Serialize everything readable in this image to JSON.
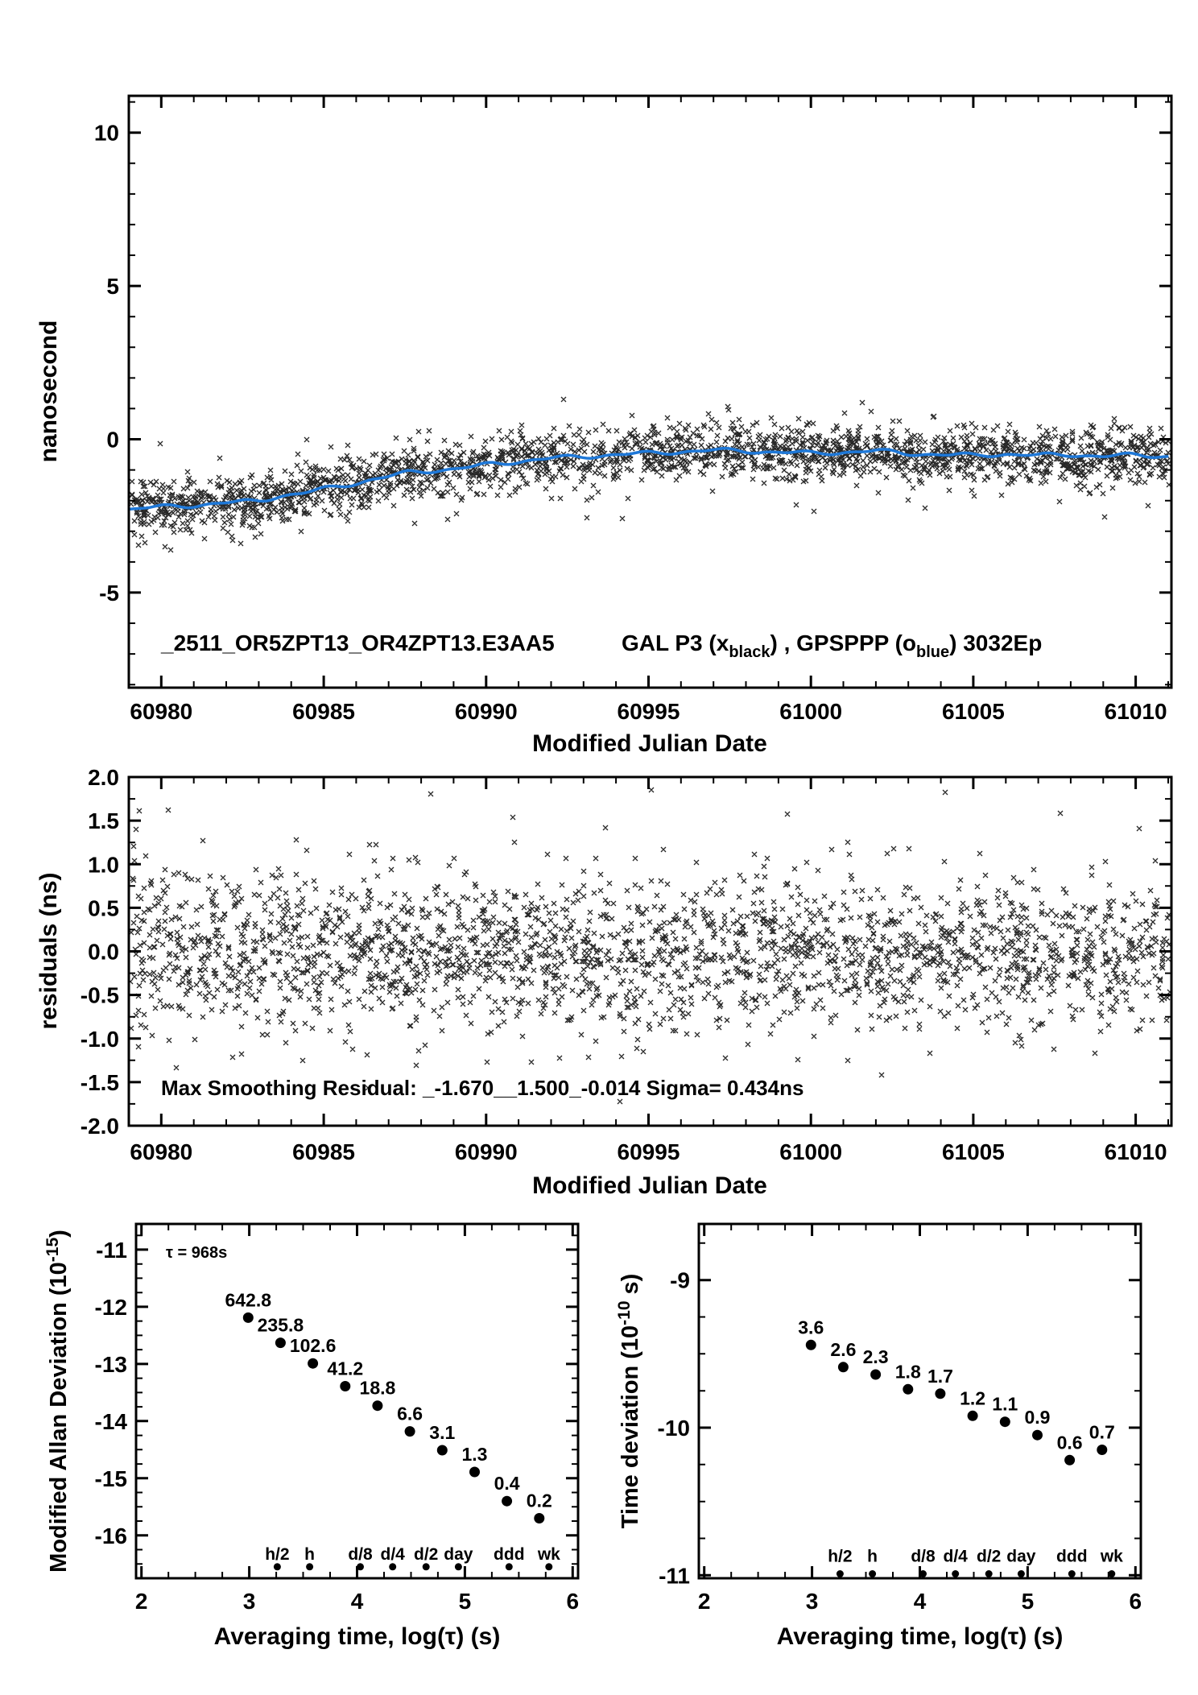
{
  "page": {
    "background": "#ffffff"
  },
  "colors": {
    "ink": "#000000",
    "smooth_blue": "#1e78d8",
    "label_red": "#e8110e"
  },
  "chart_data": [
    {
      "id": "phase",
      "type": "scatter",
      "xlabel": "Modified Julian Date",
      "ylabel": "nanosecond",
      "xlim": [
        60979.0,
        61011.1
      ],
      "ylim": [
        -8.1,
        11.2
      ],
      "xticks": [
        60980,
        60985,
        60990,
        60995,
        61000,
        61005,
        61010
      ],
      "yticks": [
        10,
        5,
        0,
        -5
      ],
      "x_minor_step": 1,
      "y_minor_step": 1,
      "legend_file": "_2511_OR5ZPT13_OR4ZPT13.E3AA5",
      "legend_segments": [
        {
          "t": "GAL P3 (x"
        },
        {
          "t": "black",
          "sub": true
        },
        {
          "t": ") ,  GPSPPP (o"
        },
        {
          "t": "blue",
          "sub": true
        },
        {
          "t": ")  3032Ep"
        }
      ],
      "series": [
        {
          "name": "GAL P3",
          "marker": "x",
          "color": "#000000",
          "n_points": 2400,
          "noise_sigma_ns": 0.45
        },
        {
          "name": "GPSPPP smoothed",
          "marker": "o",
          "color": "#1e78d8"
        }
      ],
      "smooth_trend_ns": [
        [
          60979.0,
          -2.3
        ],
        [
          60980,
          -2.2
        ],
        [
          60981,
          -2.15
        ],
        [
          60982,
          -2.08
        ],
        [
          60983,
          -2.0
        ],
        [
          60983.6,
          -1.85
        ],
        [
          60984.3,
          -1.78
        ],
        [
          60985,
          -1.62
        ],
        [
          60985.6,
          -1.5
        ],
        [
          60986.2,
          -1.38
        ],
        [
          60987,
          -1.22
        ],
        [
          60987.6,
          -1.08
        ],
        [
          60988.3,
          -1.02
        ],
        [
          60989,
          -0.97
        ],
        [
          60989.6,
          -0.9
        ],
        [
          60990.2,
          -0.8
        ],
        [
          60991,
          -0.72
        ],
        [
          60992,
          -0.62
        ],
        [
          60993,
          -0.56
        ],
        [
          60994,
          -0.5
        ],
        [
          60995,
          -0.46
        ],
        [
          60996,
          -0.4
        ],
        [
          60997,
          -0.36
        ],
        [
          60998,
          -0.38
        ],
        [
          60999,
          -0.42
        ],
        [
          61000,
          -0.46
        ],
        [
          61001,
          -0.42
        ],
        [
          61002,
          -0.38
        ],
        [
          61003,
          -0.46
        ],
        [
          61004,
          -0.5
        ],
        [
          61005,
          -0.53
        ],
        [
          61006,
          -0.48
        ],
        [
          61007,
          -0.53
        ],
        [
          61008,
          -0.5
        ],
        [
          61009,
          -0.55
        ],
        [
          61010,
          -0.52
        ],
        [
          61011.1,
          -0.55
        ]
      ]
    },
    {
      "id": "residuals",
      "type": "scatter",
      "xlabel": "Modified Julian Date",
      "ylabel": "residuals (ns)",
      "xlim": [
        60979.0,
        61011.1
      ],
      "ylim": [
        -2.0,
        2.0
      ],
      "xticks": [
        60980,
        60985,
        60990,
        60995,
        61000,
        61005,
        61010
      ],
      "yticks": [
        2.0,
        1.5,
        1.0,
        0.5,
        0.0,
        -0.5,
        -1.0,
        -1.5,
        -2.0
      ],
      "ytick_labels": [
        "2.0",
        "1.5",
        "1.0",
        "0.5",
        "0.0",
        "-0.5",
        "-1.0",
        "-1.5",
        "-2.0"
      ],
      "x_minor_step": 1,
      "y_minor_step": 0.25,
      "annotation": "Max Smoothing Residual: _-1.670__1.500_-0.014  Sigma= 0.434ns",
      "sigma_ns": 0.434,
      "n_points": 2400
    },
    {
      "id": "mdev",
      "type": "scatter",
      "xlabel": "Averaging time, log(τ) (s)",
      "ylabel_main": "Modified Allan Deviation (10",
      "ylabel_sup": "-15",
      "ylabel_close": ")",
      "note": "τ = 968s",
      "xlim": [
        1.95,
        6.05
      ],
      "ylim": [
        -16.75,
        -10.55
      ],
      "xticks": [
        2,
        3,
        4,
        5,
        6
      ],
      "yticks": [
        -11,
        -12,
        -13,
        -14,
        -15,
        -16
      ],
      "x_minor_step": 0.25,
      "y_minor_step": 0.25,
      "x": [
        2.99,
        3.29,
        3.59,
        3.89,
        4.19,
        4.49,
        4.79,
        5.09,
        5.39,
        5.69
      ],
      "y": [
        -12.19,
        -12.63,
        -12.99,
        -13.39,
        -13.73,
        -14.18,
        -14.51,
        -14.89,
        -15.4,
        -15.7
      ],
      "point_labels": [
        "642.8",
        "235.8",
        "102.6",
        "41.2",
        "18.8",
        "6.6",
        "3.1",
        "1.3",
        "0.4",
        "0.2"
      ],
      "tau_marks": {
        "labels": [
          "h/2",
          "h",
          "d/8",
          "d/4",
          "d/2",
          "day",
          "ddd",
          "wk"
        ],
        "x": [
          3.26,
          3.56,
          4.03,
          4.33,
          4.64,
          4.94,
          5.41,
          5.78
        ],
        "label_y": -16.33,
        "dot_y": -16.55
      }
    },
    {
      "id": "tdev",
      "type": "scatter",
      "xlabel": "Averaging time, log(τ) (s)",
      "ylabel_main": "Time deviation (10",
      "ylabel_sup": "-10",
      "ylabel_close": " s)",
      "xlim": [
        1.95,
        6.05
      ],
      "ylim": [
        -11.02,
        -8.62
      ],
      "xticks": [
        2,
        3,
        4,
        5,
        6
      ],
      "yticks": [
        -9,
        -10,
        -11
      ],
      "x_minor_step": 0.25,
      "y_minor_step": 0.25,
      "x": [
        2.99,
        3.29,
        3.59,
        3.89,
        4.19,
        4.49,
        4.79,
        5.09,
        5.39,
        5.69
      ],
      "y": [
        -9.44,
        -9.59,
        -9.64,
        -9.74,
        -9.77,
        -9.92,
        -9.96,
        -10.05,
        -10.22,
        -10.15
      ],
      "point_labels": [
        "3.6",
        "2.6",
        "2.3",
        "1.8",
        "1.7",
        "1.2",
        "1.1",
        "0.9",
        "0.6",
        "0.7"
      ],
      "tau_marks": {
        "labels": [
          "h/2",
          "h",
          "d/8",
          "d/4",
          "d/2",
          "day",
          "ddd",
          "wk"
        ],
        "x": [
          3.26,
          3.56,
          4.03,
          4.33,
          4.64,
          4.94,
          5.41,
          5.78
        ],
        "label_y": -10.87,
        "dot_y": -10.99
      }
    }
  ]
}
